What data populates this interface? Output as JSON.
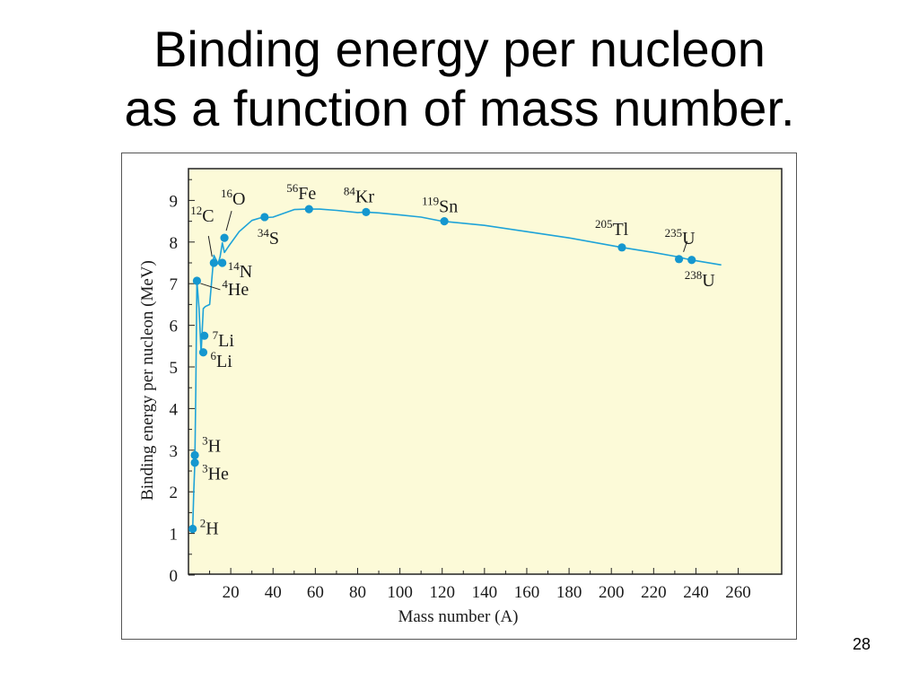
{
  "slide": {
    "title_line1": "Binding energy per nucleon",
    "title_line2": "as a function of mass number.",
    "page_number": "28"
  },
  "colors": {
    "plot_background": "#fcfad8",
    "curve": "#1ea3d8",
    "point": "#1597cf",
    "axis": "#222222",
    "text": "#1a1a1a"
  },
  "chart_data": {
    "type": "line",
    "title": "",
    "xlabel": "Mass number (A)",
    "ylabel": "Binding energy per nucleon (MeV)",
    "xlim": [
      0,
      280
    ],
    "ylim": [
      0,
      9.9
    ],
    "xticks": [
      20,
      40,
      60,
      80,
      100,
      120,
      140,
      160,
      180,
      200,
      220,
      240,
      260
    ],
    "yticks": [
      0,
      1,
      2,
      3,
      4,
      5,
      6,
      7,
      8,
      9
    ],
    "grid": false,
    "legend": "none",
    "curve": {
      "x": [
        2,
        2.5,
        3,
        3.5,
        4,
        5,
        6,
        7,
        8,
        10,
        12,
        14,
        15,
        16,
        17,
        19,
        24,
        30,
        34,
        40,
        50,
        56,
        62,
        70,
        80,
        84,
        90,
        100,
        110,
        120,
        140,
        160,
        180,
        205,
        220,
        232,
        235,
        238,
        252
      ],
      "y": [
        1.11,
        2.0,
        2.7,
        4.5,
        7.07,
        6.4,
        5.33,
        6.4,
        6.45,
        6.5,
        7.68,
        7.48,
        7.65,
        7.98,
        7.75,
        7.9,
        8.25,
        8.52,
        8.58,
        8.6,
        8.78,
        8.79,
        8.79,
        8.76,
        8.71,
        8.72,
        8.7,
        8.65,
        8.6,
        8.5,
        8.4,
        8.25,
        8.1,
        7.87,
        7.75,
        7.64,
        7.6,
        7.57,
        7.45
      ]
    },
    "points": [
      {
        "name": "2H",
        "mass": "2",
        "symbol": "H",
        "x": 2,
        "y": 1.11
      },
      {
        "name": "3He",
        "mass": "3",
        "symbol": "He",
        "x": 3,
        "y": 2.7
      },
      {
        "name": "3H",
        "mass": "3",
        "symbol": "H",
        "x": 3,
        "y": 2.88
      },
      {
        "name": "4He",
        "mass": "4",
        "symbol": "He",
        "x": 4,
        "y": 7.07
      },
      {
        "name": "6Li",
        "mass": "6",
        "symbol": "Li",
        "x": 7,
        "y": 5.35
      },
      {
        "name": "7Li",
        "mass": "7",
        "symbol": "Li",
        "x": 7.5,
        "y": 5.75
      },
      {
        "name": "12C",
        "mass": "12",
        "symbol": "C",
        "x": 12,
        "y": 7.5
      },
      {
        "name": "14N",
        "mass": "14",
        "symbol": "N",
        "x": 16,
        "y": 7.5
      },
      {
        "name": "16O",
        "mass": "16",
        "symbol": "O",
        "x": 17,
        "y": 8.1
      },
      {
        "name": "34S",
        "mass": "34",
        "symbol": "S",
        "x": 36,
        "y": 8.6
      },
      {
        "name": "56Fe",
        "mass": "56",
        "symbol": "Fe",
        "x": 57,
        "y": 8.79
      },
      {
        "name": "84Kr",
        "mass": "84",
        "symbol": "Kr",
        "x": 84,
        "y": 8.72
      },
      {
        "name": "119Sn",
        "mass": "119",
        "symbol": "Sn",
        "x": 121,
        "y": 8.5
      },
      {
        "name": "205Tl",
        "mass": "205",
        "symbol": "Tl",
        "x": 205,
        "y": 7.87
      },
      {
        "name": "235U",
        "mass": "235",
        "symbol": "U",
        "x": 232,
        "y": 7.59
      },
      {
        "name": "238U",
        "mass": "238",
        "symbol": "U",
        "x": 238,
        "y": 7.57
      }
    ]
  }
}
